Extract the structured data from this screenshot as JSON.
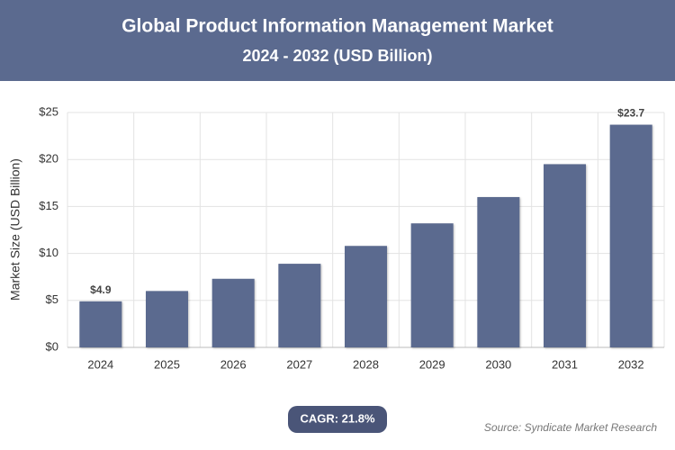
{
  "chart_data": {
    "type": "bar",
    "title": "Global Product Information Management Market",
    "subtitle": "2024 - 2032 (USD Billion)",
    "y_label": "Market Size (USD Billion)",
    "categories": [
      "2024",
      "2025",
      "2026",
      "2027",
      "2028",
      "2029",
      "2030",
      "2031",
      "2032"
    ],
    "values": [
      4.9,
      6.0,
      7.3,
      8.9,
      10.8,
      13.2,
      16.0,
      19.5,
      23.7
    ],
    "value_labels": [
      "$4.9",
      null,
      null,
      null,
      null,
      null,
      null,
      null,
      "$23.7"
    ],
    "color": "#5b6a8f",
    "ylim": [
      0,
      25
    ],
    "yticks": [
      {
        "value": 0,
        "label": "$0"
      },
      {
        "value": 5,
        "label": "$5"
      },
      {
        "value": 10,
        "label": "$10"
      },
      {
        "value": 15,
        "label": "$15"
      },
      {
        "value": 20,
        "label": "$20"
      },
      {
        "value": 25,
        "label": "$25"
      }
    ],
    "grid": true,
    "cagr": "CAGR: 21.8%",
    "source": "Source: Syndicate Market Research"
  }
}
